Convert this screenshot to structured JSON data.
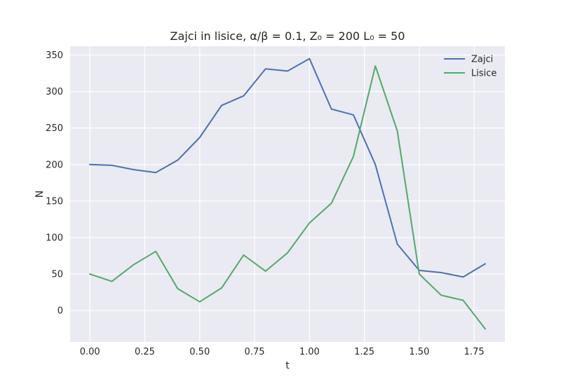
{
  "chart_data": {
    "type": "line",
    "title": "Zajci in lisice, α/β = 0.1, Z₀ = 200 L₀ = 50",
    "xlabel": "t",
    "ylabel": "N",
    "xlim": [
      -0.09,
      1.89
    ],
    "ylim": [
      -43,
      362
    ],
    "xticks": [
      0.0,
      0.25,
      0.5,
      0.75,
      1.0,
      1.25,
      1.5,
      1.75
    ],
    "xtick_labels": [
      "0.00",
      "0.25",
      "0.50",
      "0.75",
      "1.00",
      "1.25",
      "1.50",
      "1.75"
    ],
    "yticks": [
      0,
      50,
      100,
      150,
      200,
      250,
      300,
      350
    ],
    "ytick_labels": [
      "0",
      "50",
      "100",
      "150",
      "200",
      "250",
      "300",
      "350"
    ],
    "grid": true,
    "legend_position": "top-right",
    "x": [
      0.0,
      0.1,
      0.2,
      0.3,
      0.4,
      0.5,
      0.6,
      0.7,
      0.8,
      0.9,
      1.0,
      1.1,
      1.2,
      1.3,
      1.4,
      1.5,
      1.6,
      1.7,
      1.8
    ],
    "series": [
      {
        "name": "Zajci",
        "color": "#4c72b0",
        "values": [
          200,
          199,
          193,
          189,
          206,
          237,
          281,
          294,
          331,
          328,
          345,
          276,
          268,
          200,
          91,
          55,
          52,
          46,
          64
        ]
      },
      {
        "name": "Lisice",
        "color": "#55a868",
        "values": [
          50,
          40,
          63,
          81,
          30,
          12,
          31,
          76,
          54,
          79,
          120,
          147,
          211,
          335,
          246,
          50,
          21,
          14,
          -25
        ]
      }
    ]
  }
}
